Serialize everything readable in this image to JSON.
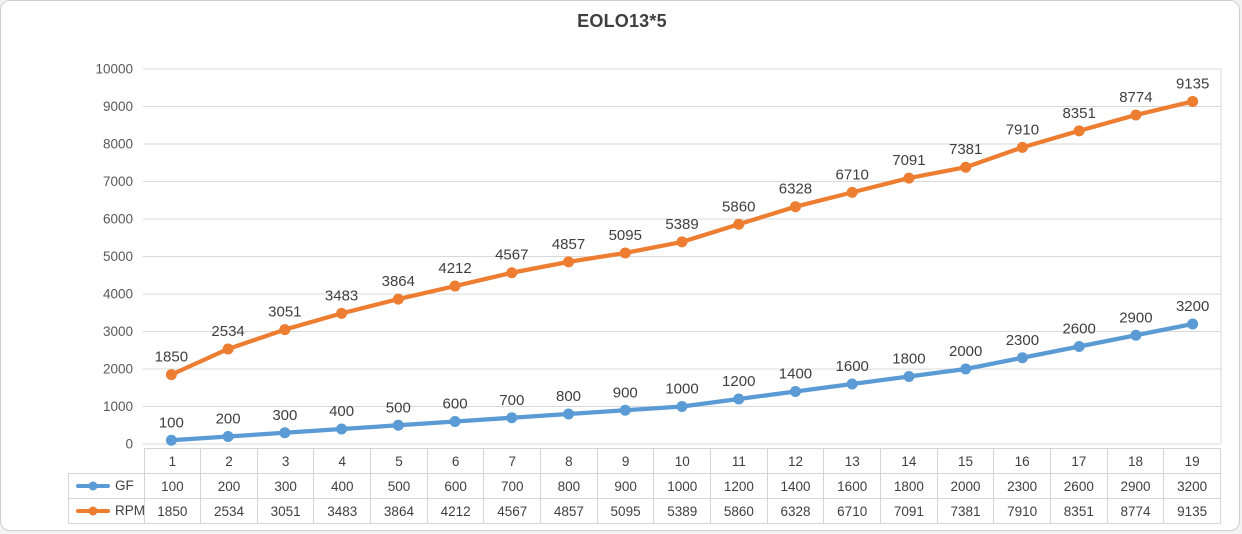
{
  "chart_data": {
    "type": "line",
    "title": "EOLO13*5",
    "categories": [
      "1",
      "2",
      "3",
      "4",
      "5",
      "6",
      "7",
      "8",
      "9",
      "10",
      "11",
      "12",
      "13",
      "14",
      "15",
      "16",
      "17",
      "18",
      "19"
    ],
    "series": [
      {
        "name": "GF",
        "color": "#5B9BD5",
        "values": [
          100,
          200,
          300,
          400,
          500,
          600,
          700,
          800,
          900,
          1000,
          1200,
          1400,
          1600,
          1800,
          2000,
          2300,
          2600,
          2900,
          3200
        ]
      },
      {
        "name": "RPM",
        "color": "#ED7D31",
        "values": [
          1850,
          2534,
          3051,
          3483,
          3864,
          4212,
          4567,
          4857,
          5095,
          5389,
          5860,
          6328,
          6710,
          7091,
          7381,
          7910,
          8351,
          8774,
          9135
        ]
      }
    ],
    "ylim": [
      0,
      10000
    ],
    "ytick_step": 1000,
    "y_tick_labels": [
      "0",
      "1000",
      "2000",
      "3000",
      "4000",
      "5000",
      "6000",
      "7000",
      "8000",
      "9000",
      "10000"
    ],
    "grid": "horizontal",
    "data_labels": "above",
    "legend_position": "table-left",
    "xlabel": "",
    "ylabel": ""
  },
  "colors": {
    "title": "#3F3F3F",
    "axis_label": "#595959",
    "data_label": "#3F3F3F",
    "gridline": "#D9D9D9",
    "table_border": "#D4D4D4",
    "table_text": "#404040",
    "background": "#FFFFFF",
    "frame_border": "#CFCFCF"
  }
}
